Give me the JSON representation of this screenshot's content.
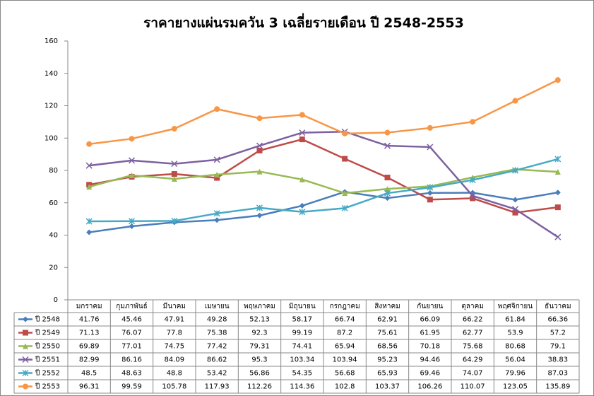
{
  "chart_data": {
    "type": "line",
    "title": "ราคายางแผ่นรมควัน 3 เฉลี่ยรายเดือน  ปี 2548-2553",
    "categories": [
      "มกราคม",
      "กุมภาพันธ์",
      "มีนาคม",
      "เมษายน",
      "พฤษภาคม",
      "มิถุนายน",
      "กรกฎาคม",
      "สิงหาคม",
      "กันยายน",
      "ตุลาคม",
      "พฤศจิกายน",
      "ธันวาคม"
    ],
    "series": [
      {
        "name": "ปี 2548",
        "color": "#4a7ebb",
        "marker": "diamond",
        "values": [
          41.76,
          45.46,
          47.91,
          49.28,
          52.13,
          58.17,
          66.74,
          62.91,
          66.09,
          66.22,
          61.84,
          66.36
        ]
      },
      {
        "name": "ปี 2549",
        "color": "#be4b48",
        "marker": "square",
        "values": [
          71.13,
          76.07,
          77.8,
          75.38,
          92.3,
          99.19,
          87.2,
          75.61,
          61.95,
          62.77,
          53.9,
          57.2
        ]
      },
      {
        "name": "ปี 2550",
        "color": "#98b954",
        "marker": "triangle",
        "values": [
          69.89,
          77.01,
          74.75,
          77.42,
          79.31,
          74.41,
          65.94,
          68.56,
          70.18,
          75.68,
          80.68,
          79.1
        ]
      },
      {
        "name": "ปี 2551",
        "color": "#7d60a0",
        "marker": "x",
        "values": [
          82.99,
          86.16,
          84.09,
          86.62,
          95.3,
          103.34,
          103.94,
          95.23,
          94.46,
          64.29,
          56.04,
          38.83
        ]
      },
      {
        "name": "ปี 2552",
        "color": "#46aac5",
        "marker": "star",
        "values": [
          48.5,
          48.63,
          48.8,
          53.42,
          56.86,
          54.35,
          56.68,
          65.93,
          69.46,
          74.07,
          79.96,
          87.03
        ]
      },
      {
        "name": "ปี 2553",
        "color": "#f79646",
        "marker": "circle",
        "values": [
          96.31,
          99.59,
          105.78,
          117.93,
          112.26,
          114.36,
          102.8,
          103.37,
          106.26,
          110.07,
          123.05,
          135.89
        ]
      }
    ],
    "ylim": [
      0,
      160
    ],
    "yticks": [
      0,
      20,
      40,
      60,
      80,
      100,
      120,
      140,
      160
    ],
    "grid": false
  }
}
